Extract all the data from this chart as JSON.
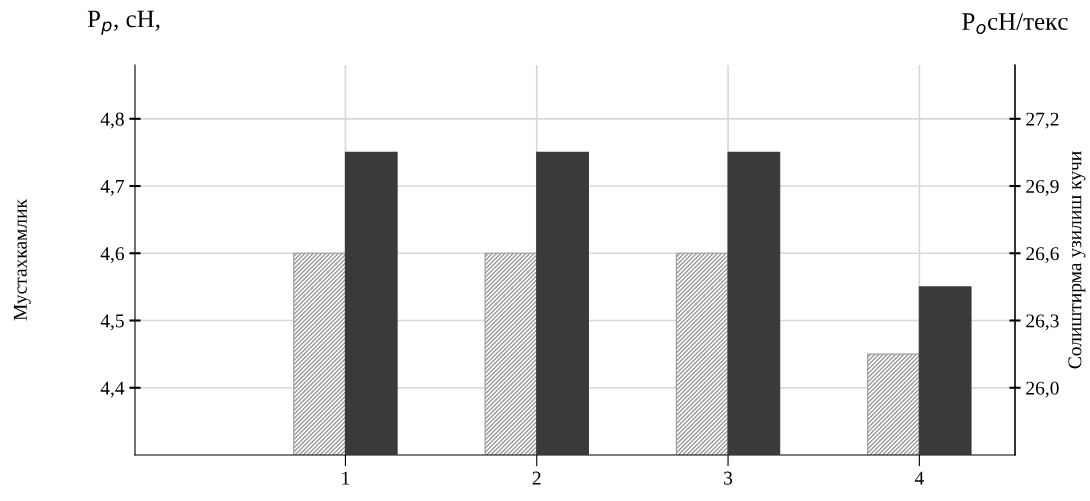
{
  "chart_data": {
    "type": "bar",
    "categories": [
      "1",
      "2",
      "3",
      "4"
    ],
    "series": [
      {
        "color": "#9a9a9a",
        "values": [
          4.6,
          4.6,
          4.6,
          4.45
        ]
      },
      {
        "color": "#3a3a3a",
        "axis": "y2",
        "values": [
          27.05,
          27.05,
          27.05,
          26.45
        ]
      }
    ],
    "ylabel": "Мустахкамлик",
    "y2label": "Солиштирма узилиш кучи",
    "annotations": [
      "P$_{p}$, cH,",
      "P$_{o}$cH/текс"
    ],
    "ylim": [
      4.3,
      4.88
    ],
    "yticks": [
      {
        "value": 4.4,
        "label": "4,4"
      },
      {
        "value": 4.5,
        "label": "4,5"
      },
      {
        "value": 4.6,
        "label": "4,6"
      },
      {
        "value": 4.7,
        "label": "4,7"
      },
      {
        "value": 4.8,
        "label": "4,8"
      }
    ],
    "y2lim": [
      25.7,
      27.44
    ],
    "y2ticks": [
      {
        "value": 26.0,
        "label": "26,0"
      },
      {
        "value": 26.3,
        "label": "26,3"
      },
      {
        "value": 26.6,
        "label": "26,6"
      },
      {
        "value": 26.9,
        "label": "26,9"
      },
      {
        "value": 27.2,
        "label": "27,2"
      }
    ],
    "grid": true
  }
}
